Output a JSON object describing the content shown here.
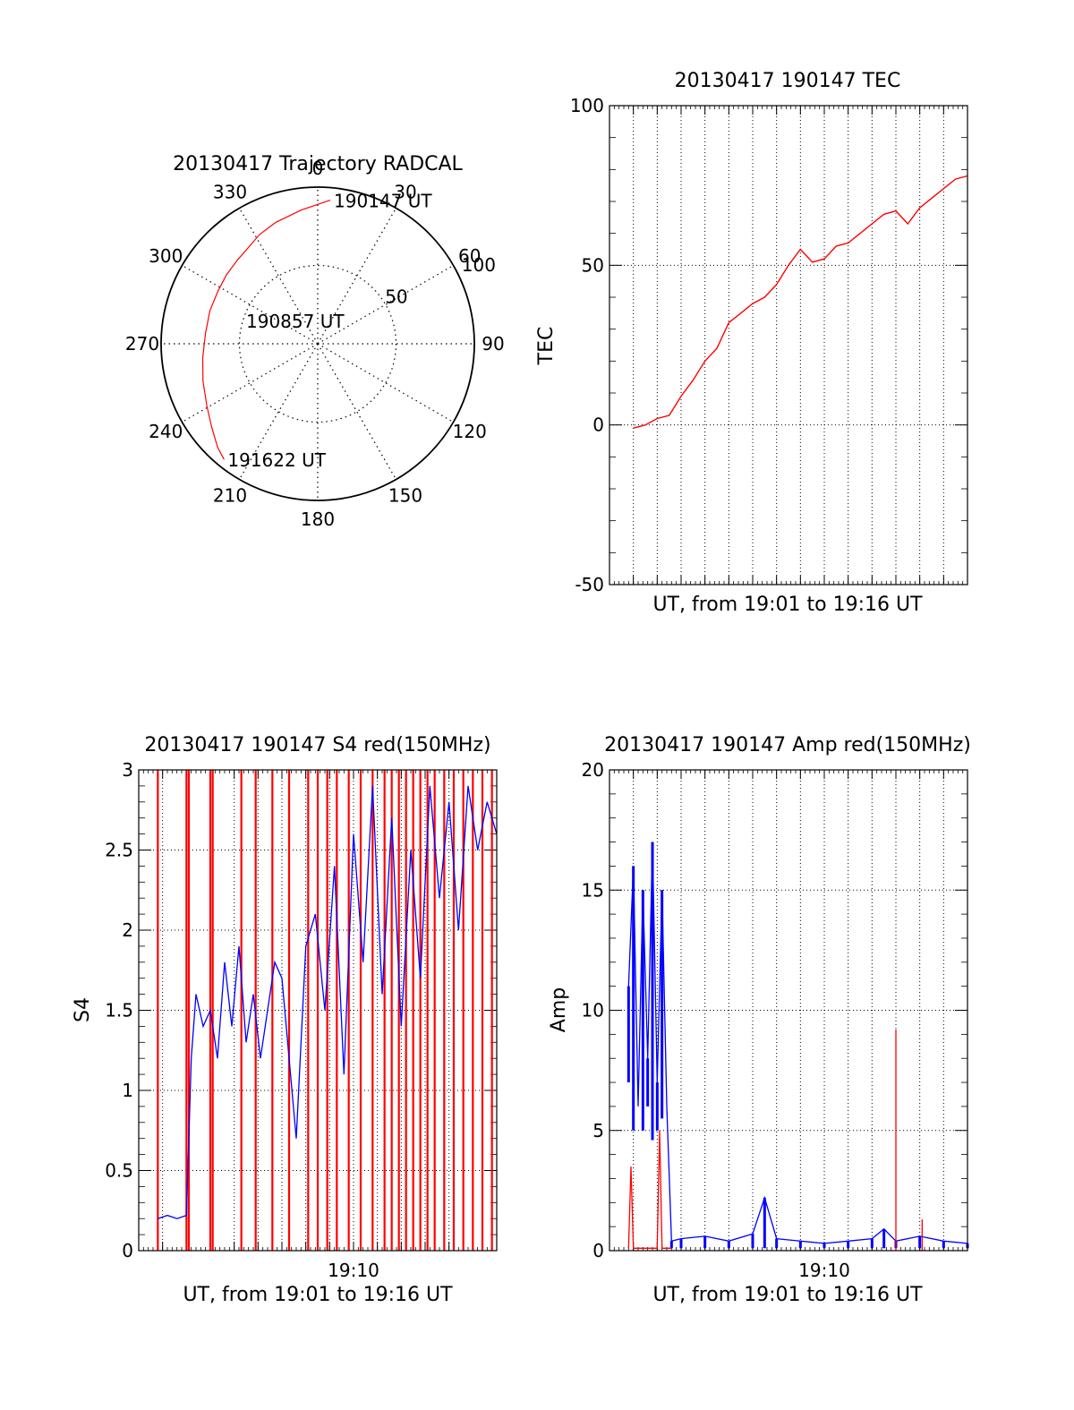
{
  "chart_data": [
    {
      "type": "polar",
      "title": "20130417 Trajectory RADCAL",
      "rlim": [
        0,
        100
      ],
      "radial_ticks": [
        50,
        100
      ],
      "azimuth_ticks": [
        0,
        30,
        60,
        90,
        120,
        150,
        180,
        210,
        240,
        270,
        300,
        330
      ],
      "grid": true,
      "series_color": "#ff0000",
      "trajectory": {
        "azimuth_deg": [
          5,
          353,
          341,
          332,
          325,
          316,
          307,
          298,
          287,
          275,
          263,
          252,
          241,
          232,
          224,
          219
        ],
        "zenith_deg": [
          92,
          86,
          82,
          79,
          76,
          74,
          73,
          72,
          72,
          72,
          74,
          77,
          81,
          86,
          92,
          95
        ]
      },
      "annotations": [
        {
          "text": "190147 UT",
          "azimuth_deg": 5,
          "zenith_deg": 92
        },
        {
          "text": "190857 UT",
          "azimuth_deg": 0,
          "zenith_deg": 0
        },
        {
          "text": "191622 UT",
          "azimuth_deg": 219,
          "zenith_deg": 95
        }
      ]
    },
    {
      "type": "line",
      "title": "20130417 190147 TEC",
      "xlabel": "UT, from 19:01 to 19:16 UT",
      "ylabel": "TEC",
      "ylim": [
        -50,
        100
      ],
      "yticks": [
        -50,
        0,
        50,
        100
      ],
      "xlim_min": [
        0,
        15
      ],
      "x_major_grid_min": [
        1,
        2,
        3,
        4,
        5,
        6,
        7,
        8,
        9,
        10,
        11,
        12,
        13,
        14,
        15
      ],
      "grid": true,
      "series": [
        {
          "color": "#ff0000",
          "x_min": [
            1.0,
            1.5,
            2.0,
            2.5,
            3.0,
            3.5,
            4.0,
            4.5,
            5.0,
            5.5,
            6.0,
            6.5,
            7.0,
            7.5,
            8.0,
            8.5,
            9.0,
            9.5,
            10.0,
            10.5,
            11.0,
            11.5,
            12.0,
            12.5,
            13.0,
            13.5,
            14.0,
            14.5,
            15.0
          ],
          "values": [
            -1,
            0,
            2,
            3,
            9,
            14,
            20,
            24,
            32,
            35,
            38,
            40,
            44,
            50,
            55,
            51,
            52,
            56,
            57,
            60,
            63,
            66,
            67,
            63,
            68,
            71,
            74,
            77,
            78
          ]
        }
      ]
    },
    {
      "type": "line",
      "title": "20130417 190147 S4 red(150MHz)",
      "xlabel": "UT, from 19:01 to 19:16 UT",
      "ylabel": "S4",
      "ylim": [
        0,
        3
      ],
      "yticks": [
        0,
        0.5,
        1,
        1.5,
        2,
        2.5,
        3
      ],
      "ytick_labels": [
        "0",
        "0.5",
        "1",
        "1.5",
        "2",
        "2.5",
        "3"
      ],
      "xlim_min": [
        0,
        15
      ],
      "xtick_labels": [
        {
          "x_min": 9,
          "label": "19:10"
        }
      ],
      "x_major_grid_min": [
        1,
        2,
        3,
        4,
        5,
        6,
        7,
        8,
        9,
        10,
        11,
        12,
        13,
        14,
        15
      ],
      "grid": true,
      "series": [
        {
          "color": "#0000ff",
          "x_min": [
            0.8,
            1.2,
            1.6,
            2.0,
            2.2,
            2.4,
            2.7,
            3.0,
            3.3,
            3.6,
            3.9,
            4.2,
            4.5,
            4.8,
            5.1,
            5.4,
            5.7,
            6.0,
            6.3,
            6.6,
            7.0,
            7.4,
            7.8,
            8.2,
            8.6,
            9.0,
            9.4,
            9.8,
            10.2,
            10.6,
            11.0,
            11.4,
            11.8,
            12.2,
            12.6,
            13.0,
            13.4,
            13.8,
            14.2,
            14.6,
            15.0
          ],
          "values": [
            0.2,
            0.22,
            0.2,
            0.22,
            1.2,
            1.6,
            1.4,
            1.5,
            1.2,
            1.8,
            1.4,
            1.9,
            1.3,
            1.6,
            1.2,
            1.5,
            1.8,
            1.7,
            1.2,
            0.7,
            1.9,
            2.1,
            1.5,
            2.4,
            1.1,
            2.6,
            1.8,
            2.9,
            1.6,
            2.7,
            1.4,
            2.5,
            1.7,
            2.9,
            2.2,
            2.8,
            2.0,
            2.9,
            2.5,
            2.8,
            2.6
          ]
        },
        {
          "color": "#ff0000",
          "x_min": [
            0.8,
            2.0,
            2.1,
            3.0,
            3.1,
            4.3,
            4.9,
            5.6,
            6.3,
            7.1,
            7.5,
            7.9,
            8.3,
            8.8,
            9.3,
            9.8,
            10.3,
            10.6,
            10.9,
            11.2,
            11.5,
            11.8,
            12.1,
            12.4,
            12.8,
            13.2,
            13.6,
            14.0,
            14.4,
            14.8
          ],
          "spike_max": 3
        }
      ]
    },
    {
      "type": "line",
      "title": "20130417 190147 Amp red(150MHz)",
      "xlabel": "UT, from 19:01 to 19:16 UT",
      "ylabel": "Amp",
      "ylim": [
        0,
        20
      ],
      "yticks": [
        0,
        5,
        10,
        15,
        20
      ],
      "xlim_min": [
        0,
        15
      ],
      "xtick_labels": [
        {
          "x_min": 9,
          "label": "19:10"
        }
      ],
      "x_major_grid_min": [
        1,
        2,
        3,
        4,
        5,
        6,
        7,
        8,
        9,
        10,
        11,
        12,
        13,
        14,
        15
      ],
      "grid": true,
      "series": [
        {
          "color": "#0000ff",
          "x_min": [
            0.8,
            1.0,
            1.2,
            1.4,
            1.6,
            1.8,
            2.0,
            2.2,
            2.4,
            2.6,
            3.0,
            4.0,
            5.0,
            6.0,
            6.5,
            7.0,
            8.0,
            9.0,
            10.0,
            11.0,
            11.5,
            12.0,
            13.0,
            14.0,
            15.0
          ],
          "values": [
            11,
            16,
            6,
            15,
            8,
            17,
            7,
            15,
            6,
            0.4,
            0.5,
            0.6,
            0.4,
            0.7,
            2.2,
            0.5,
            0.4,
            0.3,
            0.4,
            0.5,
            0.9,
            0.4,
            0.6,
            0.4,
            0.3
          ],
          "envelope_low": [
            7,
            5,
            6,
            5,
            6,
            4.6,
            5,
            5.5,
            6,
            0.1,
            0.1,
            0.1,
            0.1,
            0.1,
            0.1,
            0.1,
            0.1,
            0.1,
            0.1,
            0.1,
            0.1,
            0.1,
            0.1,
            0.1,
            0.1
          ]
        },
        {
          "color": "#ff0000",
          "x_min": [
            0.8,
            0.9,
            1.0,
            1.5,
            2.0,
            2.1,
            2.2,
            2.4,
            2.6
          ],
          "values": [
            0.1,
            3.5,
            0.1,
            0.1,
            0.1,
            5.0,
            0.1,
            0.1,
            0.1
          ],
          "spikes": [
            {
              "x_min": 12.0,
              "value": 9.2
            },
            {
              "x_min": 13.1,
              "value": 1.3
            }
          ]
        }
      ]
    }
  ]
}
